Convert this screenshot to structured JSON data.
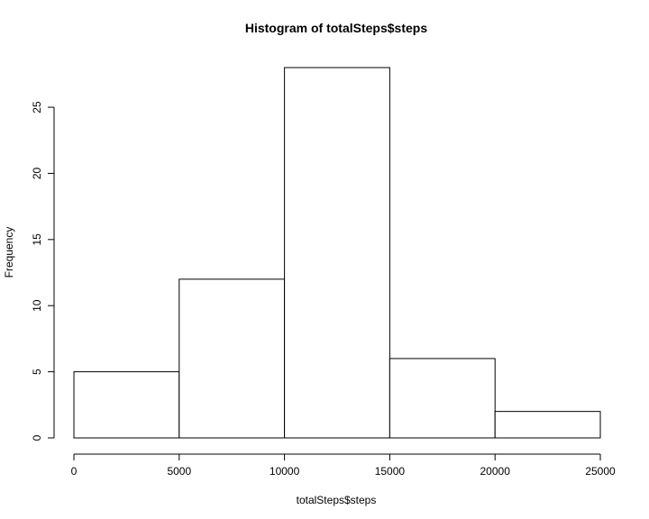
{
  "chart_data": {
    "type": "bar",
    "title": "Histogram of totalSteps$steps",
    "xlabel": "totalSteps$steps",
    "ylabel": "Frequency",
    "bins": [
      {
        "start": 0,
        "end": 5000,
        "count": 5
      },
      {
        "start": 5000,
        "end": 10000,
        "count": 12
      },
      {
        "start": 10000,
        "end": 15000,
        "count": 28
      },
      {
        "start": 15000,
        "end": 20000,
        "count": 6
      },
      {
        "start": 20000,
        "end": 25000,
        "count": 2
      }
    ],
    "xlim": [
      0,
      25000
    ],
    "ylim": [
      0,
      28
    ],
    "x_ticks": [
      "0",
      "5000",
      "10000",
      "15000",
      "20000",
      "25000"
    ],
    "y_ticks": [
      "0",
      "5",
      "10",
      "15",
      "20",
      "25"
    ],
    "grid": false,
    "legend": "none"
  }
}
